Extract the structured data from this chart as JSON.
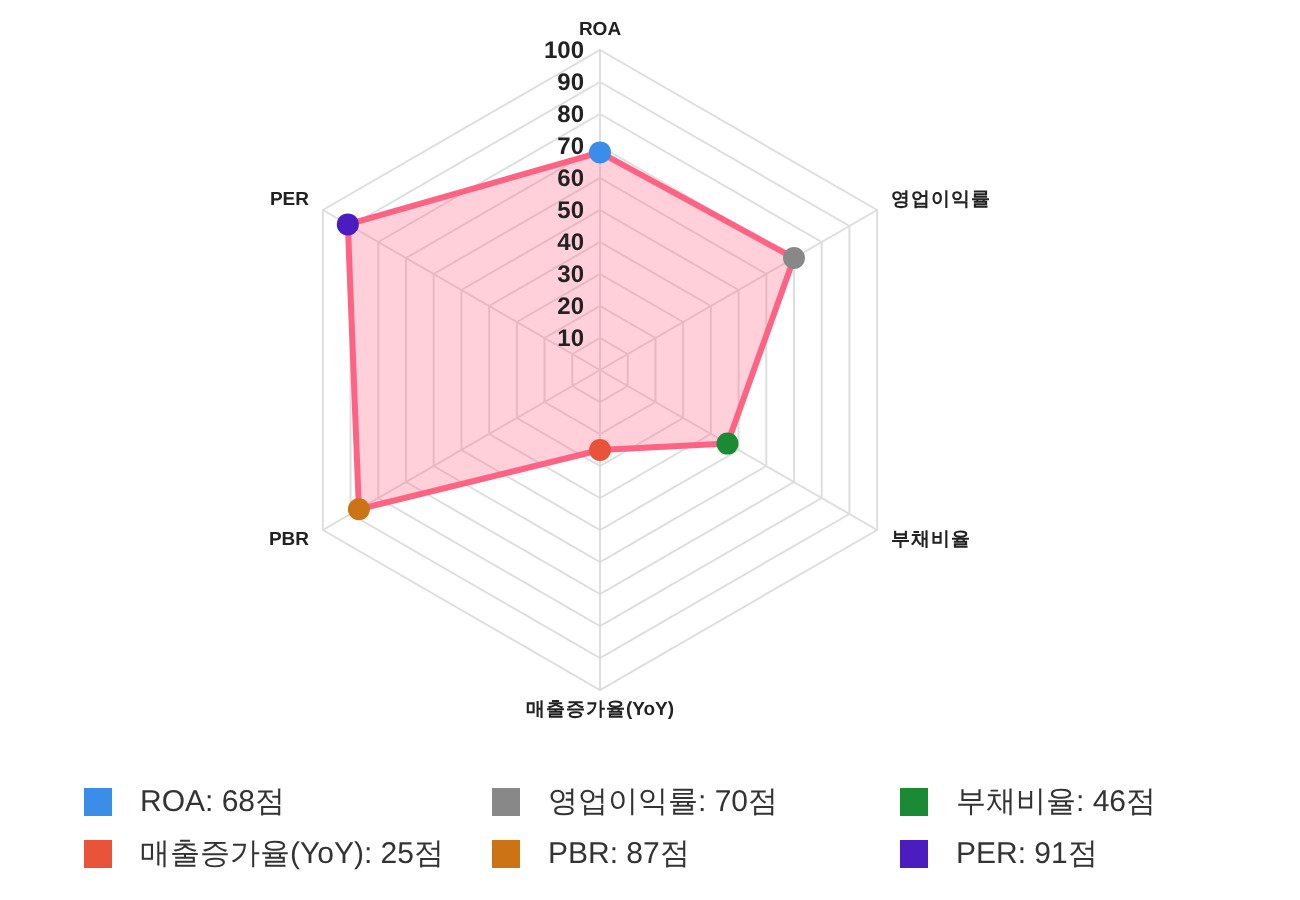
{
  "chart_data": {
    "type": "radar",
    "categories": [
      "ROA",
      "영업이익률",
      "부채비율",
      "매출증가율(YoY)",
      "PBR",
      "PER"
    ],
    "series": [
      {
        "color": "#ff6384",
        "colors": [
          "#3b8ee8",
          "#888888",
          "#1a8a35",
          "#e9533a",
          "#cc7316",
          "#4b1cc0"
        ],
        "values": [
          68,
          70,
          46,
          25,
          87,
          91
        ]
      }
    ],
    "ylim": [
      0,
      100
    ],
    "yticks": [
      10,
      20,
      30,
      40,
      50,
      60,
      70,
      80,
      90,
      100
    ],
    "grid": true,
    "marker": "circle",
    "annotations": [
      "ROA: 68점",
      "영업이익률: 70점",
      "부채비율: 46점",
      "매출증가율(YoY): 25점",
      "PBR: 87점",
      "PER: 91점"
    ]
  }
}
